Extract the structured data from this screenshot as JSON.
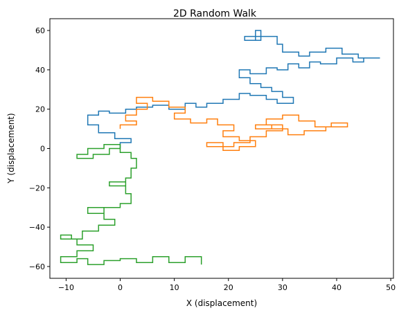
{
  "chart_data": {
    "type": "line",
    "title": "2D Random Walk",
    "xlabel": "X (displacement)",
    "ylabel": "Y (displacement)",
    "xlim": [
      -13.0,
      50.5
    ],
    "ylim": [
      -66.0,
      66.0
    ],
    "xticks": [
      -10,
      0,
      10,
      20,
      30,
      40,
      50
    ],
    "yticks": [
      -60,
      -40,
      -20,
      0,
      20,
      40,
      60
    ],
    "grid": false,
    "legend": false,
    "series": [
      {
        "color": "#1f77b4",
        "points": [
          [
            0,
            0
          ],
          [
            0,
            3
          ],
          [
            2,
            3
          ],
          [
            2,
            5
          ],
          [
            -1,
            5
          ],
          [
            -1,
            8
          ],
          [
            -4,
            8
          ],
          [
            -4,
            12
          ],
          [
            -6,
            12
          ],
          [
            -6,
            17
          ],
          [
            -4,
            17
          ],
          [
            -4,
            19
          ],
          [
            -2,
            19
          ],
          [
            -2,
            18
          ],
          [
            1,
            18
          ],
          [
            1,
            20
          ],
          [
            3,
            20
          ],
          [
            3,
            21
          ],
          [
            6,
            21
          ],
          [
            6,
            22
          ],
          [
            9,
            22
          ],
          [
            9,
            20
          ],
          [
            12,
            20
          ],
          [
            12,
            23
          ],
          [
            14,
            23
          ],
          [
            14,
            21
          ],
          [
            16,
            21
          ],
          [
            16,
            23
          ],
          [
            19,
            23
          ],
          [
            19,
            25
          ],
          [
            22,
            25
          ],
          [
            22,
            28
          ],
          [
            24,
            28
          ],
          [
            24,
            27
          ],
          [
            27,
            27
          ],
          [
            27,
            25
          ],
          [
            29,
            25
          ],
          [
            29,
            23
          ],
          [
            32,
            23
          ],
          [
            32,
            26
          ],
          [
            30,
            26
          ],
          [
            30,
            29
          ],
          [
            28,
            29
          ],
          [
            28,
            31
          ],
          [
            26,
            31
          ],
          [
            26,
            33
          ],
          [
            24,
            33
          ],
          [
            24,
            36
          ],
          [
            22,
            36
          ],
          [
            22,
            40
          ],
          [
            24,
            40
          ],
          [
            24,
            38
          ],
          [
            27,
            38
          ],
          [
            27,
            41
          ],
          [
            29,
            41
          ],
          [
            29,
            40
          ],
          [
            31,
            40
          ],
          [
            31,
            43
          ],
          [
            33,
            43
          ],
          [
            33,
            41
          ],
          [
            35,
            41
          ],
          [
            35,
            44
          ],
          [
            37,
            44
          ],
          [
            37,
            43
          ],
          [
            40,
            43
          ],
          [
            40,
            46
          ],
          [
            43,
            46
          ],
          [
            43,
            44
          ],
          [
            45,
            44
          ],
          [
            45,
            46
          ],
          [
            48,
            46
          ],
          [
            48,
            46
          ],
          [
            44,
            46
          ],
          [
            44,
            48
          ],
          [
            41,
            48
          ],
          [
            41,
            51
          ],
          [
            38,
            51
          ],
          [
            38,
            49
          ],
          [
            35,
            49
          ],
          [
            35,
            47
          ],
          [
            33,
            47
          ],
          [
            33,
            49
          ],
          [
            30,
            49
          ],
          [
            30,
            53
          ],
          [
            29,
            53
          ],
          [
            29,
            57
          ],
          [
            26,
            57
          ],
          [
            26,
            60
          ],
          [
            25,
            60
          ],
          [
            25,
            55
          ],
          [
            23,
            55
          ],
          [
            23,
            57
          ],
          [
            26,
            57
          ],
          [
            26,
            55
          ],
          [
            24,
            55
          ]
        ]
      },
      {
        "color": "#ff7f0e",
        "points": [
          [
            0,
            10
          ],
          [
            0,
            12
          ],
          [
            3,
            12
          ],
          [
            3,
            14
          ],
          [
            1,
            14
          ],
          [
            1,
            17
          ],
          [
            3,
            17
          ],
          [
            3,
            20
          ],
          [
            5,
            20
          ],
          [
            5,
            23
          ],
          [
            3,
            23
          ],
          [
            3,
            26
          ],
          [
            6,
            26
          ],
          [
            6,
            24
          ],
          [
            9,
            24
          ],
          [
            9,
            21
          ],
          [
            12,
            21
          ],
          [
            12,
            18
          ],
          [
            10,
            18
          ],
          [
            10,
            15
          ],
          [
            13,
            15
          ],
          [
            13,
            13
          ],
          [
            16,
            13
          ],
          [
            16,
            15
          ],
          [
            18,
            15
          ],
          [
            18,
            12
          ],
          [
            21,
            12
          ],
          [
            21,
            9
          ],
          [
            19,
            9
          ],
          [
            19,
            6
          ],
          [
            22,
            6
          ],
          [
            22,
            4
          ],
          [
            25,
            4
          ],
          [
            25,
            1
          ],
          [
            22,
            1
          ],
          [
            22,
            -1
          ],
          [
            19,
            -1
          ],
          [
            19,
            1
          ],
          [
            16,
            1
          ],
          [
            16,
            3
          ],
          [
            19,
            3
          ],
          [
            19,
            1
          ],
          [
            21,
            1
          ],
          [
            21,
            3
          ],
          [
            24,
            3
          ],
          [
            24,
            6
          ],
          [
            27,
            6
          ],
          [
            27,
            9
          ],
          [
            30,
            9
          ],
          [
            30,
            12
          ],
          [
            27,
            12
          ],
          [
            27,
            15
          ],
          [
            30,
            15
          ],
          [
            30,
            17
          ],
          [
            33,
            17
          ],
          [
            33,
            14
          ],
          [
            36,
            14
          ],
          [
            36,
            11
          ],
          [
            39,
            11
          ],
          [
            39,
            13
          ],
          [
            42,
            13
          ],
          [
            42,
            11
          ],
          [
            38,
            11
          ],
          [
            38,
            9
          ],
          [
            34,
            9
          ],
          [
            34,
            7
          ],
          [
            31,
            7
          ],
          [
            31,
            10
          ],
          [
            28,
            10
          ],
          [
            28,
            12
          ],
          [
            25,
            12
          ],
          [
            25,
            10
          ],
          [
            28,
            10
          ],
          [
            28,
            12
          ],
          [
            30,
            12
          ]
        ]
      },
      {
        "color": "#2ca02c",
        "points": [
          [
            0,
            0
          ],
          [
            -2,
            0
          ],
          [
            -2,
            -3
          ],
          [
            -5,
            -3
          ],
          [
            -5,
            -5
          ],
          [
            -8,
            -5
          ],
          [
            -8,
            -3
          ],
          [
            -6,
            -3
          ],
          [
            -6,
            0
          ],
          [
            -3,
            0
          ],
          [
            -3,
            2
          ],
          [
            0,
            2
          ],
          [
            0,
            -2
          ],
          [
            2,
            -2
          ],
          [
            2,
            -5
          ],
          [
            3,
            -5
          ],
          [
            3,
            -10
          ],
          [
            2,
            -10
          ],
          [
            2,
            -15
          ],
          [
            1,
            -15
          ],
          [
            1,
            -19
          ],
          [
            -2,
            -19
          ],
          [
            -2,
            -17
          ],
          [
            1,
            -17
          ],
          [
            1,
            -23
          ],
          [
            2,
            -23
          ],
          [
            2,
            -28
          ],
          [
            0,
            -28
          ],
          [
            0,
            -30
          ],
          [
            -3,
            -30
          ],
          [
            -3,
            -33
          ],
          [
            -6,
            -33
          ],
          [
            -6,
            -30
          ],
          [
            -3,
            -30
          ],
          [
            -3,
            -36
          ],
          [
            -1,
            -36
          ],
          [
            -1,
            -39
          ],
          [
            -4,
            -39
          ],
          [
            -4,
            -42
          ],
          [
            -7,
            -42
          ],
          [
            -7,
            -46
          ],
          [
            -9,
            -46
          ],
          [
            -9,
            -44
          ],
          [
            -11,
            -44
          ],
          [
            -11,
            -46
          ],
          [
            -8,
            -46
          ],
          [
            -8,
            -49
          ],
          [
            -5,
            -49
          ],
          [
            -5,
            -52
          ],
          [
            -8,
            -52
          ],
          [
            -8,
            -55
          ],
          [
            -11,
            -55
          ],
          [
            -11,
            -58
          ],
          [
            -8,
            -58
          ],
          [
            -8,
            -56
          ],
          [
            -6,
            -56
          ],
          [
            -6,
            -59
          ],
          [
            -3,
            -59
          ],
          [
            -3,
            -57
          ],
          [
            0,
            -57
          ],
          [
            0,
            -56
          ],
          [
            3,
            -56
          ],
          [
            3,
            -58
          ],
          [
            6,
            -58
          ],
          [
            6,
            -55
          ],
          [
            9,
            -55
          ],
          [
            9,
            -58
          ],
          [
            12,
            -58
          ],
          [
            12,
            -55
          ],
          [
            15,
            -55
          ],
          [
            15,
            -59
          ]
        ]
      }
    ]
  }
}
